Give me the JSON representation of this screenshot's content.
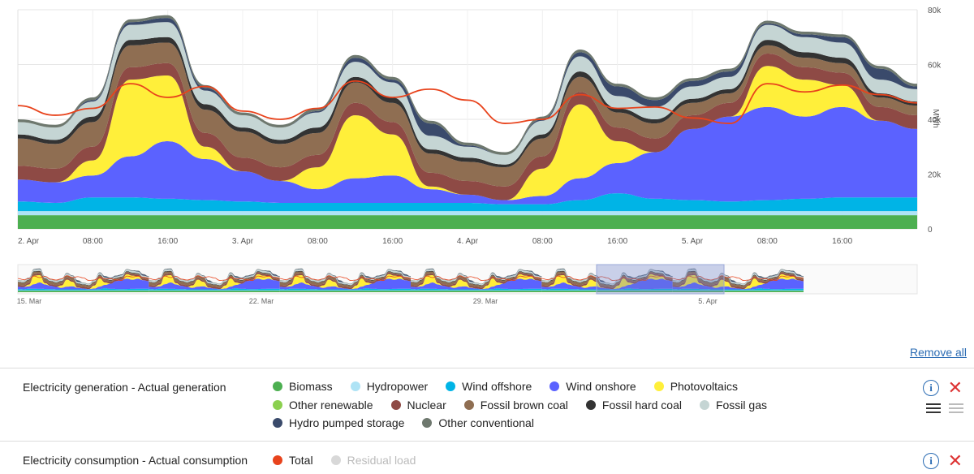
{
  "chart_data": {
    "type": "area",
    "y_unit": "MWh",
    "ylim": [
      0,
      80000
    ],
    "y_ticks": [
      {
        "value": 0,
        "label": "0"
      },
      {
        "value": 20000,
        "label": "20k"
      },
      {
        "value": 40000,
        "label": "40k"
      },
      {
        "value": 60000,
        "label": "60k"
      },
      {
        "value": 80000,
        "label": "80k"
      }
    ],
    "x_hours_range": [
      0,
      96
    ],
    "x_ticks": [
      {
        "hour": 0,
        "label": "2. Apr"
      },
      {
        "hour": 8,
        "label": "08:00"
      },
      {
        "hour": 16,
        "label": "16:00"
      },
      {
        "hour": 24,
        "label": "3. Apr"
      },
      {
        "hour": 32,
        "label": "08:00"
      },
      {
        "hour": 40,
        "label": "16:00"
      },
      {
        "hour": 48,
        "label": "4. Apr"
      },
      {
        "hour": 56,
        "label": "08:00"
      },
      {
        "hour": 64,
        "label": "16:00"
      },
      {
        "hour": 72,
        "label": "5. Apr"
      },
      {
        "hour": 80,
        "label": "08:00"
      },
      {
        "hour": 88,
        "label": "16:00"
      }
    ],
    "hours": [
      0,
      4,
      8,
      12,
      16,
      20,
      24,
      28,
      32,
      36,
      40,
      44,
      48,
      52,
      56,
      60,
      64,
      68,
      72,
      76,
      80,
      84,
      88,
      92,
      96
    ],
    "stack_series": [
      {
        "name": "Biomass",
        "color": "#4caf50",
        "values": [
          5000,
          5000,
          5000,
          5000,
          5000,
          5000,
          5000,
          5000,
          5000,
          5000,
          5000,
          5000,
          5000,
          5000,
          5000,
          5000,
          5000,
          5000,
          5000,
          5000,
          5000,
          5000,
          5000,
          5000,
          5000
        ]
      },
      {
        "name": "Hydropower",
        "color": "#aee3f5",
        "values": [
          1500,
          1500,
          1500,
          1500,
          1500,
          1500,
          1500,
          1500,
          1500,
          1500,
          1500,
          1500,
          1500,
          1500,
          1500,
          1500,
          1500,
          1500,
          1500,
          1500,
          1500,
          1500,
          1500,
          1500,
          1500
        ]
      },
      {
        "name": "Wind offshore",
        "color": "#00b4e6",
        "values": [
          3500,
          3000,
          5000,
          5000,
          4500,
          4000,
          3500,
          3000,
          3000,
          3000,
          3000,
          3000,
          3000,
          2500,
          2500,
          4000,
          6500,
          4500,
          4000,
          3500,
          4000,
          4500,
          5000,
          5000,
          5000
        ]
      },
      {
        "name": "Wind onshore",
        "color": "#5b62ff",
        "values": [
          8000,
          7500,
          8000,
          15000,
          21000,
          15000,
          11000,
          8000,
          5000,
          9000,
          10000,
          5000,
          3000,
          1500,
          3000,
          8000,
          11000,
          17000,
          26000,
          31000,
          34000,
          30000,
          33000,
          28000,
          25000
        ]
      },
      {
        "name": "Photovoltaics",
        "color": "#ffef3a",
        "values": [
          0,
          0,
          5500,
          28000,
          24000,
          4500,
          0,
          0,
          8000,
          23000,
          15000,
          1000,
          0,
          0,
          10000,
          27000,
          8000,
          0,
          0,
          0,
          15000,
          13500,
          8000,
          0,
          0
        ]
      },
      {
        "name": "Other renewable",
        "color": "#8bd04f",
        "values": [
          0,
          0,
          0,
          0,
          0,
          0,
          0,
          0,
          0,
          0,
          0,
          0,
          0,
          0,
          0,
          0,
          0,
          0,
          0,
          0,
          0,
          0,
          0,
          0,
          0
        ]
      },
      {
        "name": "Nuclear",
        "color": "#8e4a45",
        "values": [
          5000,
          5000,
          5000,
          4500,
          4500,
          5000,
          5000,
          5000,
          4500,
          4500,
          4500,
          5000,
          5000,
          5000,
          4500,
          4500,
          5000,
          5000,
          5000,
          5000,
          4500,
          4500,
          4500,
          5000,
          5000
        ]
      },
      {
        "name": "Fossil brown coal",
        "color": "#8f6e52",
        "values": [
          10000,
          9000,
          9000,
          8000,
          7500,
          8500,
          9500,
          8500,
          8000,
          7500,
          7000,
          7000,
          7000,
          7000,
          6500,
          5500,
          5500,
          5500,
          4500,
          3500,
          3000,
          3500,
          3500,
          3500,
          3500
        ]
      },
      {
        "name": "Fossil hard coal",
        "color": "#333333",
        "values": [
          1500,
          1500,
          2000,
          2000,
          2000,
          2000,
          1500,
          1500,
          2000,
          2000,
          2000,
          1500,
          1500,
          1000,
          1500,
          2000,
          1500,
          1500,
          1500,
          1500,
          2000,
          2000,
          2000,
          1500,
          1500
        ]
      },
      {
        "name": "Fossil gas",
        "color": "#c5d5d4",
        "values": [
          4500,
          4500,
          5500,
          5500,
          5500,
          5000,
          4500,
          4500,
          5500,
          5500,
          5500,
          5000,
          4000,
          3500,
          5000,
          5500,
          4500,
          4500,
          4500,
          4500,
          5500,
          5500,
          5500,
          5000,
          4500
        ]
      },
      {
        "name": "Hydro pumped storage",
        "color": "#3a4a6b",
        "values": [
          0,
          0,
          500,
          1000,
          1500,
          1000,
          0,
          0,
          500,
          1500,
          1000,
          4500,
          500,
          0,
          500,
          1500,
          3500,
          2500,
          2000,
          2000,
          500,
          1000,
          2000,
          4000,
          1000
        ]
      },
      {
        "name": "Other conventional",
        "color": "#6e786e",
        "values": [
          1000,
          1000,
          1000,
          1000,
          1000,
          1000,
          1000,
          1000,
          1000,
          1000,
          1000,
          1000,
          1000,
          1000,
          1000,
          1000,
          1000,
          1000,
          1000,
          1000,
          1000,
          1000,
          1000,
          1000,
          1000
        ]
      }
    ],
    "line_series": [
      {
        "name": "Total",
        "color": "#e8431c",
        "values": [
          45000,
          41500,
          44000,
          53000,
          48000,
          52000,
          43000,
          40000,
          44000,
          54000,
          48000,
          51000,
          47000,
          38500,
          40000,
          49000,
          44000,
          44500,
          40500,
          38500,
          53000,
          50000,
          52500,
          49000,
          46000
        ]
      }
    ],
    "navigator": {
      "x_labels": [
        "15. Mar",
        "22. Mar",
        "29. Mar",
        "5. Apr"
      ]
    }
  },
  "header": {
    "remove_all": "Remove all"
  },
  "legend_groups": [
    {
      "title": "Electricity generation - Actual generation",
      "items": [
        {
          "label": "Biomass",
          "color": "#4caf50"
        },
        {
          "label": "Hydropower",
          "color": "#aee3f5"
        },
        {
          "label": "Wind offshore",
          "color": "#00b4e6"
        },
        {
          "label": "Wind onshore",
          "color": "#5b62ff"
        },
        {
          "label": "Photovoltaics",
          "color": "#ffef3a"
        },
        {
          "label": "Other renewable",
          "color": "#8bd04f"
        },
        {
          "label": "Nuclear",
          "color": "#8e4a45"
        },
        {
          "label": "Fossil brown coal",
          "color": "#8f6e52"
        },
        {
          "label": "Fossil hard coal",
          "color": "#333333"
        },
        {
          "label": "Fossil gas",
          "color": "#c5d5d4"
        },
        {
          "label": "Hydro pumped storage",
          "color": "#3a4a6b"
        },
        {
          "label": "Other conventional",
          "color": "#6e786e"
        }
      ]
    },
    {
      "title": "Electricity consumption - Actual consumption",
      "items": [
        {
          "label": "Total",
          "color": "#e8431c"
        },
        {
          "label": "Residual load",
          "color": "#d8d8d8"
        }
      ]
    }
  ]
}
